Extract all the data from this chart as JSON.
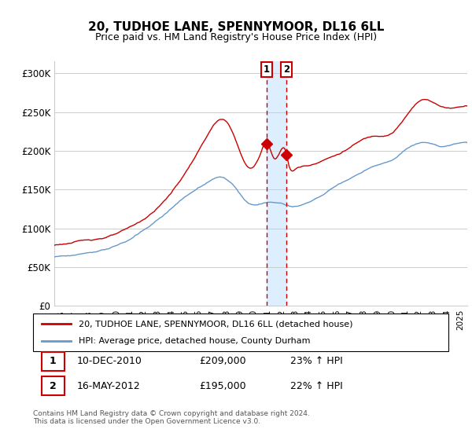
{
  "title": "20, TUDHOE LANE, SPENNYMOOR, DL16 6LL",
  "subtitle": "Price paid vs. HM Land Registry's House Price Index (HPI)",
  "ylabel_ticks": [
    "£0",
    "£50K",
    "£100K",
    "£150K",
    "£200K",
    "£250K",
    "£300K"
  ],
  "ytick_values": [
    0,
    50000,
    100000,
    150000,
    200000,
    250000,
    300000
  ],
  "ylim": [
    0,
    315000
  ],
  "xlim_start": 1995.5,
  "xlim_end": 2025.5,
  "legend_line1": "20, TUDHOE LANE, SPENNYMOOR, DL16 6LL (detached house)",
  "legend_line2": "HPI: Average price, detached house, County Durham",
  "sale1_label": "1",
  "sale1_date": "10-DEC-2010",
  "sale1_price": "£209,000",
  "sale1_hpi": "23% ↑ HPI",
  "sale1_x": 2010.94,
  "sale1_y": 209000,
  "sale2_label": "2",
  "sale2_date": "16-MAY-2012",
  "sale2_price": "£195,000",
  "sale2_hpi": "22% ↑ HPI",
  "sale2_x": 2012.37,
  "sale2_y": 195000,
  "footer": "Contains HM Land Registry data © Crown copyright and database right 2024.\nThis data is licensed under the Open Government Licence v3.0.",
  "red_color": "#cc0000",
  "blue_color": "#6699cc",
  "highlight_fill": "#ddeeff",
  "dashed_line_color": "#cc0000",
  "grid_color": "#cccccc",
  "background_color": "#ffffff"
}
